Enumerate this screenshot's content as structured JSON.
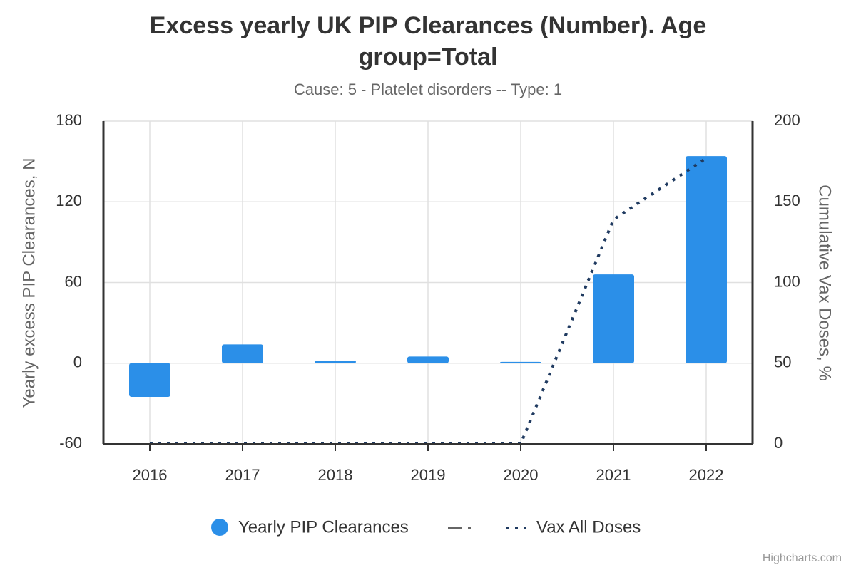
{
  "chart_data": {
    "type": "bar",
    "title": "Excess yearly UK PIP Clearances (Number). Age group=Total",
    "subtitle": "Cause: 5 - Platelet disorders -- Type: 1",
    "y_label": "Yearly excess PIP Clearances, N",
    "y2_label": "Cumulative Vax Doses, %",
    "credit": "Highcharts.com",
    "categories": [
      "2016",
      "2017",
      "2018",
      "2019",
      "2020",
      "2021",
      "2022"
    ],
    "series": [
      {
        "name": "Yearly PIP Clearances",
        "type": "bar",
        "color": "#2b8fe8",
        "values": [
          -25,
          14,
          2,
          5,
          1,
          66,
          154
        ]
      },
      {
        "name": "Vax All Doses",
        "type": "line",
        "axis": "y2",
        "color": "#1f3a60",
        "values": [
          0,
          0,
          0,
          0,
          0,
          139,
          177
        ]
      }
    ],
    "ylim": [
      -60,
      180
    ],
    "yticks": [
      -60,
      0,
      60,
      120,
      180
    ],
    "y2lim": [
      0,
      200
    ],
    "y2ticks": [
      0,
      50,
      100,
      150,
      200
    ],
    "grid": true
  }
}
